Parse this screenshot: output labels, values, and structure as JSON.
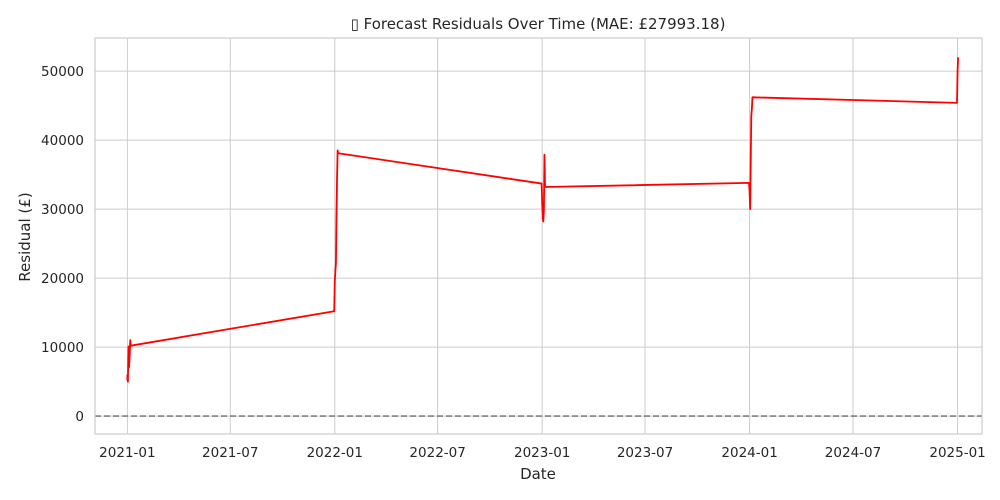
{
  "chart_data": {
    "type": "line",
    "title": "▯ Forecast Residuals Over Time (MAE: £27993.18)",
    "xlabel": "Date",
    "ylabel": "Residual (£)",
    "xlim": [
      "2020-11-05",
      "2025-02-13"
    ],
    "ylim": [
      -2600,
      54800
    ],
    "x_ticks": [
      "2021-01",
      "2021-07",
      "2022-01",
      "2022-07",
      "2023-01",
      "2023-07",
      "2024-01",
      "2024-07",
      "2025-01"
    ],
    "y_ticks": [
      0,
      10000,
      20000,
      30000,
      40000,
      50000
    ],
    "y_tick_labels": [
      "0",
      "10000",
      "20000",
      "30000",
      "40000",
      "50000"
    ],
    "grid": true,
    "reference_line": {
      "y": 0,
      "style": "dashed",
      "color": "#808080"
    },
    "series": [
      {
        "color": "#ff0000",
        "points": [
          {
            "x": "2021-01-01",
            "y": 6000
          },
          {
            "x": "2021-01-01",
            "y": 5300
          },
          {
            "x": "2021-01-02",
            "y": 5000
          },
          {
            "x": "2021-01-02",
            "y": 5600
          },
          {
            "x": "2021-01-03",
            "y": 10100
          },
          {
            "x": "2021-01-04",
            "y": 7100
          },
          {
            "x": "2021-01-05",
            "y": 8700
          },
          {
            "x": "2021-01-06",
            "y": 11000
          },
          {
            "x": "2021-01-07",
            "y": 10200
          },
          {
            "x": "2021-12-31",
            "y": 15200
          },
          {
            "x": "2022-01-01",
            "y": 19500
          },
          {
            "x": "2022-01-02",
            "y": 21000
          },
          {
            "x": "2022-01-03",
            "y": 22200
          },
          {
            "x": "2022-01-04",
            "y": 29000
          },
          {
            "x": "2022-01-05",
            "y": 34500
          },
          {
            "x": "2022-01-06",
            "y": 38500
          },
          {
            "x": "2022-01-07",
            "y": 38100
          },
          {
            "x": "2022-12-31",
            "y": 33700
          },
          {
            "x": "2023-01-01",
            "y": 30800
          },
          {
            "x": "2023-01-02",
            "y": 28700
          },
          {
            "x": "2023-01-03",
            "y": 28200
          },
          {
            "x": "2023-01-04",
            "y": 30000
          },
          {
            "x": "2023-01-05",
            "y": 37900
          },
          {
            "x": "2023-01-06",
            "y": 33400
          },
          {
            "x": "2023-01-07",
            "y": 33200
          },
          {
            "x": "2023-12-31",
            "y": 33800
          },
          {
            "x": "2024-01-01",
            "y": 32500
          },
          {
            "x": "2024-01-02",
            "y": 30000
          },
          {
            "x": "2024-01-03",
            "y": 37000
          },
          {
            "x": "2024-01-04",
            "y": 43500
          },
          {
            "x": "2024-01-05",
            "y": 44500
          },
          {
            "x": "2024-01-06",
            "y": 46200
          },
          {
            "x": "2024-01-07",
            "y": 46200
          },
          {
            "x": "2024-12-31",
            "y": 45400
          },
          {
            "x": "2025-01-01",
            "y": 50000
          },
          {
            "x": "2025-01-02",
            "y": 52000
          }
        ]
      }
    ]
  }
}
